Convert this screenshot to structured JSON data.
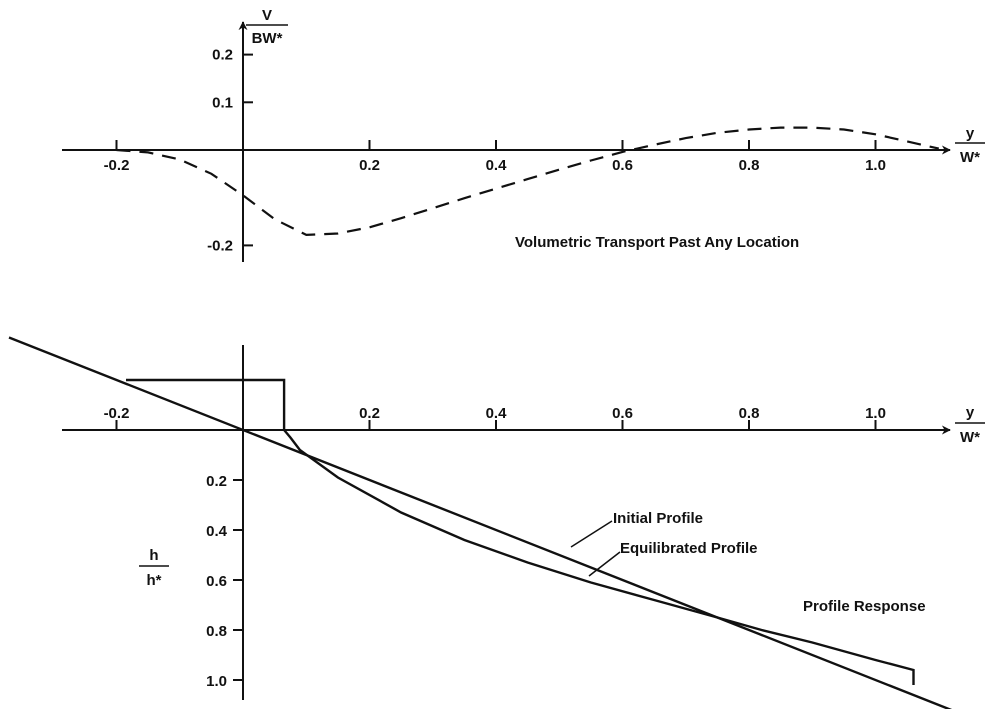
{
  "chart_data": [
    {
      "type": "line",
      "title": "Volumetric Transport Past Any Location",
      "xlabel": {
        "num": "y",
        "den": "W*"
      },
      "ylabel": {
        "num": "V",
        "den": "BW*"
      },
      "xlim": [
        -0.3,
        1.15
      ],
      "ylim": [
        -0.23,
        0.25
      ],
      "xticks": [
        -0.2,
        0.2,
        0.4,
        0.6,
        0.8,
        1.0
      ],
      "xtick_labels": [
        "-0.2",
        "0.2",
        "0.4",
        "0.6",
        "0.8",
        "1.0"
      ],
      "yticks": [
        0.2,
        0.1,
        -0.2
      ],
      "ytick_labels": [
        "0.2",
        "0.1",
        "-0.2"
      ],
      "series": [
        {
          "style": "dashed",
          "x": [
            -0.2,
            -0.15,
            -0.1,
            -0.05,
            0.0,
            0.05,
            0.1,
            0.15,
            0.2,
            0.25,
            0.3,
            0.35,
            0.4,
            0.45,
            0.5,
            0.55,
            0.6,
            0.65,
            0.7,
            0.75,
            0.8,
            0.85,
            0.9,
            0.95,
            1.0,
            1.05,
            1.1
          ],
          "y": [
            0.0,
            -0.005,
            -0.02,
            -0.05,
            -0.095,
            -0.145,
            -0.178,
            -0.175,
            -0.162,
            -0.143,
            -0.122,
            -0.101,
            -0.081,
            -0.061,
            -0.041,
            -0.022,
            -0.004,
            0.011,
            0.025,
            0.036,
            0.043,
            0.047,
            0.047,
            0.043,
            0.033,
            0.018,
            0.003
          ]
        }
      ]
    },
    {
      "type": "line",
      "title": "Profile Response",
      "xlabel": {
        "num": "y",
        "den": "W*"
      },
      "ylabel": {
        "num": "h",
        "den": "h*"
      },
      "xlim": [
        -0.35,
        1.15
      ],
      "ylim": [
        -0.22,
        1.12
      ],
      "y_inverted": true,
      "xticks": [
        -0.2,
        0.2,
        0.4,
        0.6,
        0.8,
        1.0
      ],
      "xtick_labels": [
        "-0.2",
        "0.2",
        "0.4",
        "0.6",
        "0.8",
        "1.0"
      ],
      "yticks": [
        0.2,
        0.4,
        0.6,
        0.8,
        1.0
      ],
      "ytick_labels": [
        "0.2",
        "0.4",
        "0.6",
        "0.8",
        "1.0"
      ],
      "series": [
        {
          "name": "Initial Profile",
          "x": [
            -0.37,
            1.13
          ],
          "y": [
            -0.37,
            1.13
          ]
        },
        {
          "name": "Equilibrated Profile",
          "x": [
            -0.185,
            0.065,
            0.065,
            0.075,
            0.09,
            0.15,
            0.25,
            0.35,
            0.45,
            0.55,
            0.65,
            0.75,
            0.82,
            0.9,
            1.0,
            1.06,
            1.06
          ],
          "y": [
            -0.2,
            -0.2,
            0.0,
            0.03,
            0.08,
            0.19,
            0.33,
            0.44,
            0.53,
            0.61,
            0.68,
            0.75,
            0.8,
            0.85,
            0.92,
            0.96,
            1.02
          ]
        }
      ],
      "annotations": [
        "Initial Profile",
        "Equilibrated Profile"
      ]
    }
  ]
}
